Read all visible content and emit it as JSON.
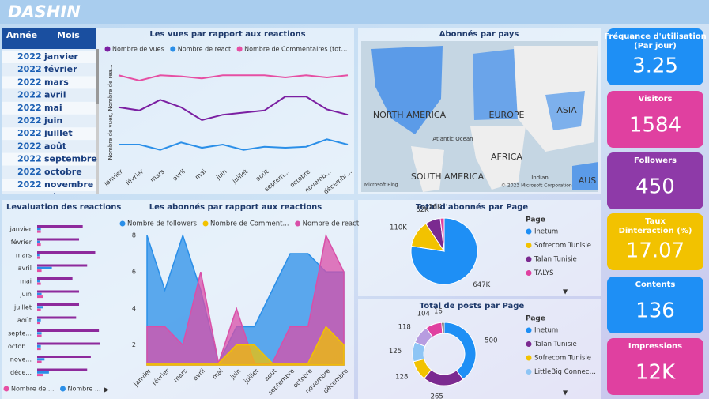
{
  "header": {
    "logo": "DASHIN"
  },
  "slicer": {
    "columns": [
      "Année",
      "Mois"
    ],
    "rows": [
      [
        "2022",
        "janvier"
      ],
      [
        "2022",
        "février"
      ],
      [
        "2022",
        "mars"
      ],
      [
        "2022",
        "avril"
      ],
      [
        "2022",
        "mai"
      ],
      [
        "2022",
        "juin"
      ],
      [
        "2022",
        "juillet"
      ],
      [
        "2022",
        "août"
      ],
      [
        "2022",
        "septembre"
      ],
      [
        "2022",
        "octobre"
      ],
      [
        "2022",
        "novembre"
      ],
      [
        "2022",
        "décembre"
      ]
    ]
  },
  "map": {
    "title": "Abonnés par pays",
    "labels": [
      "NORTH AMERICA",
      "EUROPE",
      "ASIA",
      "Atlantic Ocean",
      "AFRICA",
      "SOUTH AMERICA",
      "Indian",
      "AUS"
    ],
    "brand": "Microsoft Bing",
    "credit": "© 2023 Microsoft Corporation"
  },
  "kpis": [
    {
      "title": [
        "Fréquance d'utilisation",
        "(Par jour)"
      ],
      "value": 3.25,
      "color": "#1e8ff5"
    },
    {
      "title": [
        "Visitors"
      ],
      "value": 1584,
      "color": "#e040a0"
    },
    {
      "title": [
        "Followers"
      ],
      "value": 450,
      "color": "#8e3aa8"
    },
    {
      "title": [
        "Taux",
        "Dinteraction (%)"
      ],
      "value": 17.07,
      "color": "#f2c200"
    },
    {
      "title": [
        "Contents"
      ],
      "value": 136,
      "color": "#1e8ff5"
    },
    {
      "title": [
        "Impressions"
      ],
      "value": 12000,
      "value_label": "12K",
      "color": "#e040a0"
    }
  ],
  "chart_data": [
    {
      "type": "line",
      "title": "Les vues par rapport aux reactions",
      "ylabel": "Nombre de vues, Nombre de rea...",
      "categories": [
        "janvier",
        "février",
        "mars",
        "avril",
        "mai",
        "juin",
        "juillet",
        "août",
        "septem…",
        "octobre",
        "novemb…",
        "décembr…"
      ],
      "ylim": [
        0,
        100
      ],
      "series": [
        {
          "name": "Nombre de vues",
          "color": "#7b1fa2",
          "values": [
            55,
            52,
            62,
            55,
            43,
            48,
            50,
            52,
            65,
            65,
            53,
            48
          ]
        },
        {
          "name": "Nombre de react",
          "color": "#2b8fe8",
          "values": [
            20,
            20,
            15,
            22,
            17,
            20,
            15,
            18,
            17,
            18,
            25,
            20
          ]
        },
        {
          "name": "Nombre de Commentaires (tot…",
          "color": "#e64fa3",
          "values": [
            85,
            80,
            85,
            84,
            82,
            85,
            85,
            85,
            83,
            85,
            83,
            85
          ]
        }
      ]
    },
    {
      "type": "hbar",
      "title": "Levaluation des reactions",
      "categories": [
        "janvier",
        "février",
        "mars",
        "avril",
        "mai",
        "juin",
        "juillet",
        "août",
        "septe...",
        "octob...",
        "nove...",
        "déce..."
      ],
      "xlim": [
        0,
        100
      ],
      "series": [
        {
          "color": "#8e2a9c",
          "values": [
            62,
            57,
            79,
            68,
            48,
            57,
            57,
            53,
            84,
            86,
            73,
            68
          ]
        },
        {
          "name": "Nombre de ...",
          "color": "#e64fa3",
          "values": [
            5,
            5,
            4,
            6,
            5,
            8,
            5,
            4,
            6,
            5,
            6,
            8
          ]
        },
        {
          "name": "Nombre ...",
          "color": "#2b8fe8",
          "values": [
            5,
            4,
            3,
            20,
            4,
            6,
            8,
            5,
            6,
            5,
            10,
            16
          ]
        }
      ]
    },
    {
      "type": "area",
      "title": "Les abonnés par rapport aux reactions",
      "categories": [
        "janvier",
        "février",
        "mars",
        "avril",
        "mai",
        "juin",
        "juillet",
        "août",
        "septembre",
        "octobre",
        "novembre",
        "décembre"
      ],
      "ylim": [
        0.9,
        8.3
      ],
      "yticks": [
        2,
        4,
        6,
        8
      ],
      "series": [
        {
          "name": "Nombre de followers",
          "color": "#2b8fe8",
          "values": [
            8,
            5,
            8,
            5,
            1,
            3,
            3,
            5,
            7,
            7,
            6,
            6
          ]
        },
        {
          "name": "Nombre de Comment...",
          "color": "#f2c200",
          "values": [
            1,
            1,
            1,
            1,
            1,
            2,
            2,
            1,
            1,
            1,
            3,
            2
          ]
        },
        {
          "name": "Nombre de react",
          "color": "#d94fa8",
          "values": [
            3,
            3,
            2,
            6,
            1,
            4,
            1,
            1,
            3,
            3,
            8,
            6
          ]
        }
      ]
    },
    {
      "type": "pie",
      "title": "Total d'abonnés par Page",
      "legend_title": "Page",
      "categories": [
        "Inetum",
        "Sofrecom Tunisie",
        "Talan Tunisie",
        "TALYS"
      ],
      "values": [
        647000,
        110000,
        62000,
        16000
      ],
      "value_labels": [
        "647K",
        "110K",
        "62K",
        "16K"
      ],
      "colors": [
        "#1e8ff5",
        "#f2c200",
        "#7b2a90",
        "#e040a0"
      ]
    },
    {
      "type": "donut",
      "title": "Total de posts par Page",
      "legend_title": "Page",
      "categories": [
        "Inetum",
        "Talan Tunisie",
        "Sofrecom Tunisie",
        "LittleBig Connec…",
        null,
        null,
        null
      ],
      "values": [
        500,
        265,
        128,
        125,
        118,
        104,
        16
      ],
      "colors": [
        "#1e8ff5",
        "#7b2a90",
        "#f2c200",
        "#8ec5f5",
        "#b79ce0",
        "#e040a0",
        "#333333"
      ]
    }
  ]
}
